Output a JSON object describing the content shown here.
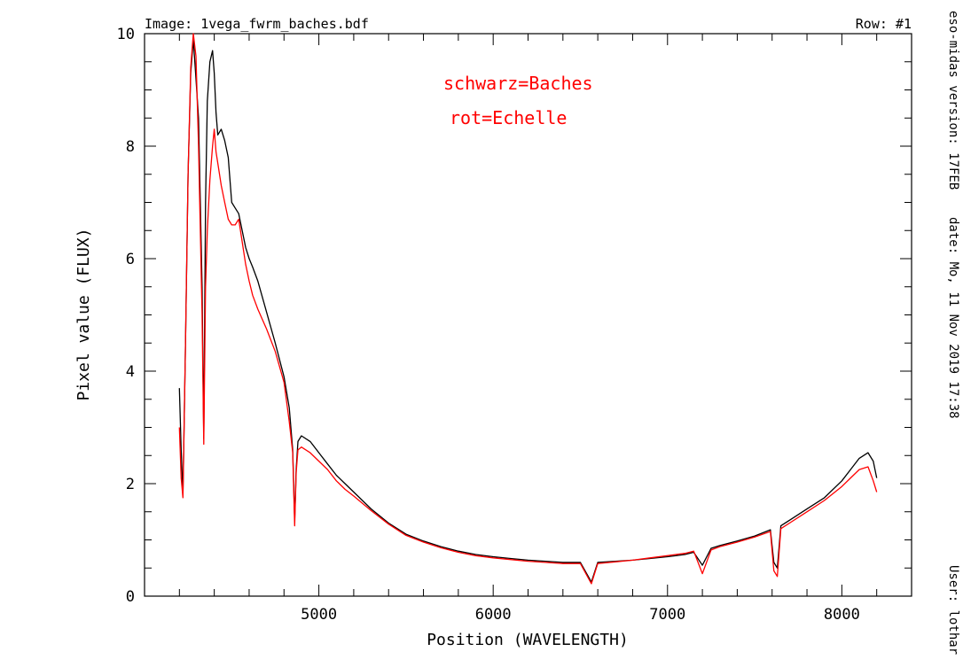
{
  "header": {
    "image": "Image: 1vega_fwrm_baches.bdf",
    "row": "Row: #1"
  },
  "side_info": {
    "version": "eso-midas version: 17FEB",
    "date": "date: Mo, 11 Nov 2019 17:38",
    "user": "User: lothar"
  },
  "legend": {
    "black": "schwarz=Baches",
    "red": "rot=Echelle"
  },
  "colors": {
    "black": "#000000",
    "red": "#ff0000",
    "axis": "#000000"
  },
  "chart_data": {
    "type": "line",
    "title": "",
    "xlabel": "Position (WAVELENGTH)",
    "ylabel": "Pixel value (FLUX)",
    "xlim": [
      4000,
      8400
    ],
    "ylim": [
      0,
      10
    ],
    "xticks_major": [
      5000,
      6000,
      7000,
      8000
    ],
    "xtick_labels": [
      "5000",
      "6000",
      "7000",
      "8000"
    ],
    "yticks_major": [
      0,
      2,
      4,
      6,
      8,
      10
    ],
    "ytick_labels": [
      "0",
      "2",
      "4",
      "6",
      "8",
      "10"
    ],
    "series": [
      {
        "name": "Baches",
        "color": "black",
        "points": [
          [
            4200,
            3.7
          ],
          [
            4210,
            2.6
          ],
          [
            4220,
            1.8
          ],
          [
            4235,
            4.5
          ],
          [
            4250,
            7.5
          ],
          [
            4265,
            9.3
          ],
          [
            4280,
            9.9
          ],
          [
            4295,
            9.2
          ],
          [
            4310,
            8.5
          ],
          [
            4320,
            7.0
          ],
          [
            4330,
            5.5
          ],
          [
            4340,
            2.8
          ],
          [
            4350,
            7.0
          ],
          [
            4360,
            8.8
          ],
          [
            4375,
            9.5
          ],
          [
            4390,
            9.7
          ],
          [
            4400,
            9.3
          ],
          [
            4410,
            8.6
          ],
          [
            4420,
            8.2
          ],
          [
            4440,
            8.3
          ],
          [
            4460,
            8.1
          ],
          [
            4480,
            7.8
          ],
          [
            4500,
            7.0
          ],
          [
            4520,
            6.9
          ],
          [
            4540,
            6.8
          ],
          [
            4560,
            6.5
          ],
          [
            4580,
            6.2
          ],
          [
            4600,
            6.0
          ],
          [
            4620,
            5.85
          ],
          [
            4650,
            5.6
          ],
          [
            4700,
            5.05
          ],
          [
            4750,
            4.5
          ],
          [
            4800,
            3.9
          ],
          [
            4830,
            3.35
          ],
          [
            4850,
            2.6
          ],
          [
            4861,
            1.35
          ],
          [
            4870,
            2.25
          ],
          [
            4880,
            2.75
          ],
          [
            4900,
            2.85
          ],
          [
            4950,
            2.75
          ],
          [
            5000,
            2.55
          ],
          [
            5050,
            2.35
          ],
          [
            5100,
            2.15
          ],
          [
            5150,
            2.0
          ],
          [
            5200,
            1.85
          ],
          [
            5300,
            1.55
          ],
          [
            5400,
            1.3
          ],
          [
            5500,
            1.1
          ],
          [
            5600,
            0.98
          ],
          [
            5700,
            0.88
          ],
          [
            5800,
            0.8
          ],
          [
            5900,
            0.74
          ],
          [
            6000,
            0.7
          ],
          [
            6100,
            0.67
          ],
          [
            6200,
            0.64
          ],
          [
            6300,
            0.62
          ],
          [
            6400,
            0.6
          ],
          [
            6500,
            0.6
          ],
          [
            6563,
            0.25
          ],
          [
            6600,
            0.6
          ],
          [
            6700,
            0.62
          ],
          [
            6800,
            0.64
          ],
          [
            6900,
            0.67
          ],
          [
            7000,
            0.7
          ],
          [
            7100,
            0.74
          ],
          [
            7150,
            0.78
          ],
          [
            7200,
            0.55
          ],
          [
            7250,
            0.85
          ],
          [
            7300,
            0.9
          ],
          [
            7400,
            0.98
          ],
          [
            7500,
            1.07
          ],
          [
            7590,
            1.18
          ],
          [
            7610,
            0.6
          ],
          [
            7630,
            0.5
          ],
          [
            7650,
            1.25
          ],
          [
            7700,
            1.35
          ],
          [
            7800,
            1.55
          ],
          [
            7900,
            1.75
          ],
          [
            8000,
            2.05
          ],
          [
            8050,
            2.25
          ],
          [
            8100,
            2.45
          ],
          [
            8150,
            2.55
          ],
          [
            8180,
            2.4
          ],
          [
            8200,
            2.1
          ]
        ]
      },
      {
        "name": "Echelle",
        "color": "red",
        "points": [
          [
            4200,
            3.0
          ],
          [
            4210,
            2.1
          ],
          [
            4220,
            1.75
          ],
          [
            4235,
            4.5
          ],
          [
            4250,
            7.5
          ],
          [
            4265,
            9.4
          ],
          [
            4280,
            10.0
          ],
          [
            4295,
            9.6
          ],
          [
            4310,
            8.0
          ],
          [
            4320,
            6.5
          ],
          [
            4330,
            5.0
          ],
          [
            4340,
            2.7
          ],
          [
            4350,
            5.5
          ],
          [
            4360,
            6.5
          ],
          [
            4375,
            7.4
          ],
          [
            4390,
            8.0
          ],
          [
            4400,
            8.3
          ],
          [
            4410,
            7.9
          ],
          [
            4420,
            7.7
          ],
          [
            4440,
            7.3
          ],
          [
            4460,
            7.0
          ],
          [
            4480,
            6.7
          ],
          [
            4500,
            6.6
          ],
          [
            4520,
            6.6
          ],
          [
            4540,
            6.7
          ],
          [
            4560,
            6.3
          ],
          [
            4580,
            5.9
          ],
          [
            4600,
            5.6
          ],
          [
            4620,
            5.35
          ],
          [
            4650,
            5.1
          ],
          [
            4700,
            4.75
          ],
          [
            4750,
            4.35
          ],
          [
            4800,
            3.8
          ],
          [
            4830,
            3.1
          ],
          [
            4850,
            2.55
          ],
          [
            4861,
            1.25
          ],
          [
            4870,
            2.2
          ],
          [
            4880,
            2.6
          ],
          [
            4900,
            2.65
          ],
          [
            4950,
            2.55
          ],
          [
            5000,
            2.4
          ],
          [
            5050,
            2.25
          ],
          [
            5100,
            2.05
          ],
          [
            5150,
            1.9
          ],
          [
            5200,
            1.78
          ],
          [
            5300,
            1.52
          ],
          [
            5400,
            1.28
          ],
          [
            5500,
            1.08
          ],
          [
            5600,
            0.96
          ],
          [
            5700,
            0.86
          ],
          [
            5800,
            0.78
          ],
          [
            5900,
            0.72
          ],
          [
            6000,
            0.68
          ],
          [
            6100,
            0.65
          ],
          [
            6200,
            0.62
          ],
          [
            6300,
            0.6
          ],
          [
            6400,
            0.58
          ],
          [
            6500,
            0.58
          ],
          [
            6563,
            0.22
          ],
          [
            6600,
            0.58
          ],
          [
            6700,
            0.61
          ],
          [
            6800,
            0.64
          ],
          [
            6900,
            0.68
          ],
          [
            7000,
            0.72
          ],
          [
            7100,
            0.76
          ],
          [
            7150,
            0.8
          ],
          [
            7200,
            0.4
          ],
          [
            7250,
            0.82
          ],
          [
            7300,
            0.88
          ],
          [
            7400,
            0.96
          ],
          [
            7500,
            1.05
          ],
          [
            7590,
            1.15
          ],
          [
            7610,
            0.45
          ],
          [
            7630,
            0.35
          ],
          [
            7650,
            1.2
          ],
          [
            7700,
            1.3
          ],
          [
            7800,
            1.5
          ],
          [
            7900,
            1.7
          ],
          [
            8000,
            1.95
          ],
          [
            8050,
            2.1
          ],
          [
            8100,
            2.25
          ],
          [
            8150,
            2.3
          ],
          [
            8180,
            2.05
          ],
          [
            8200,
            1.85
          ]
        ]
      }
    ]
  }
}
